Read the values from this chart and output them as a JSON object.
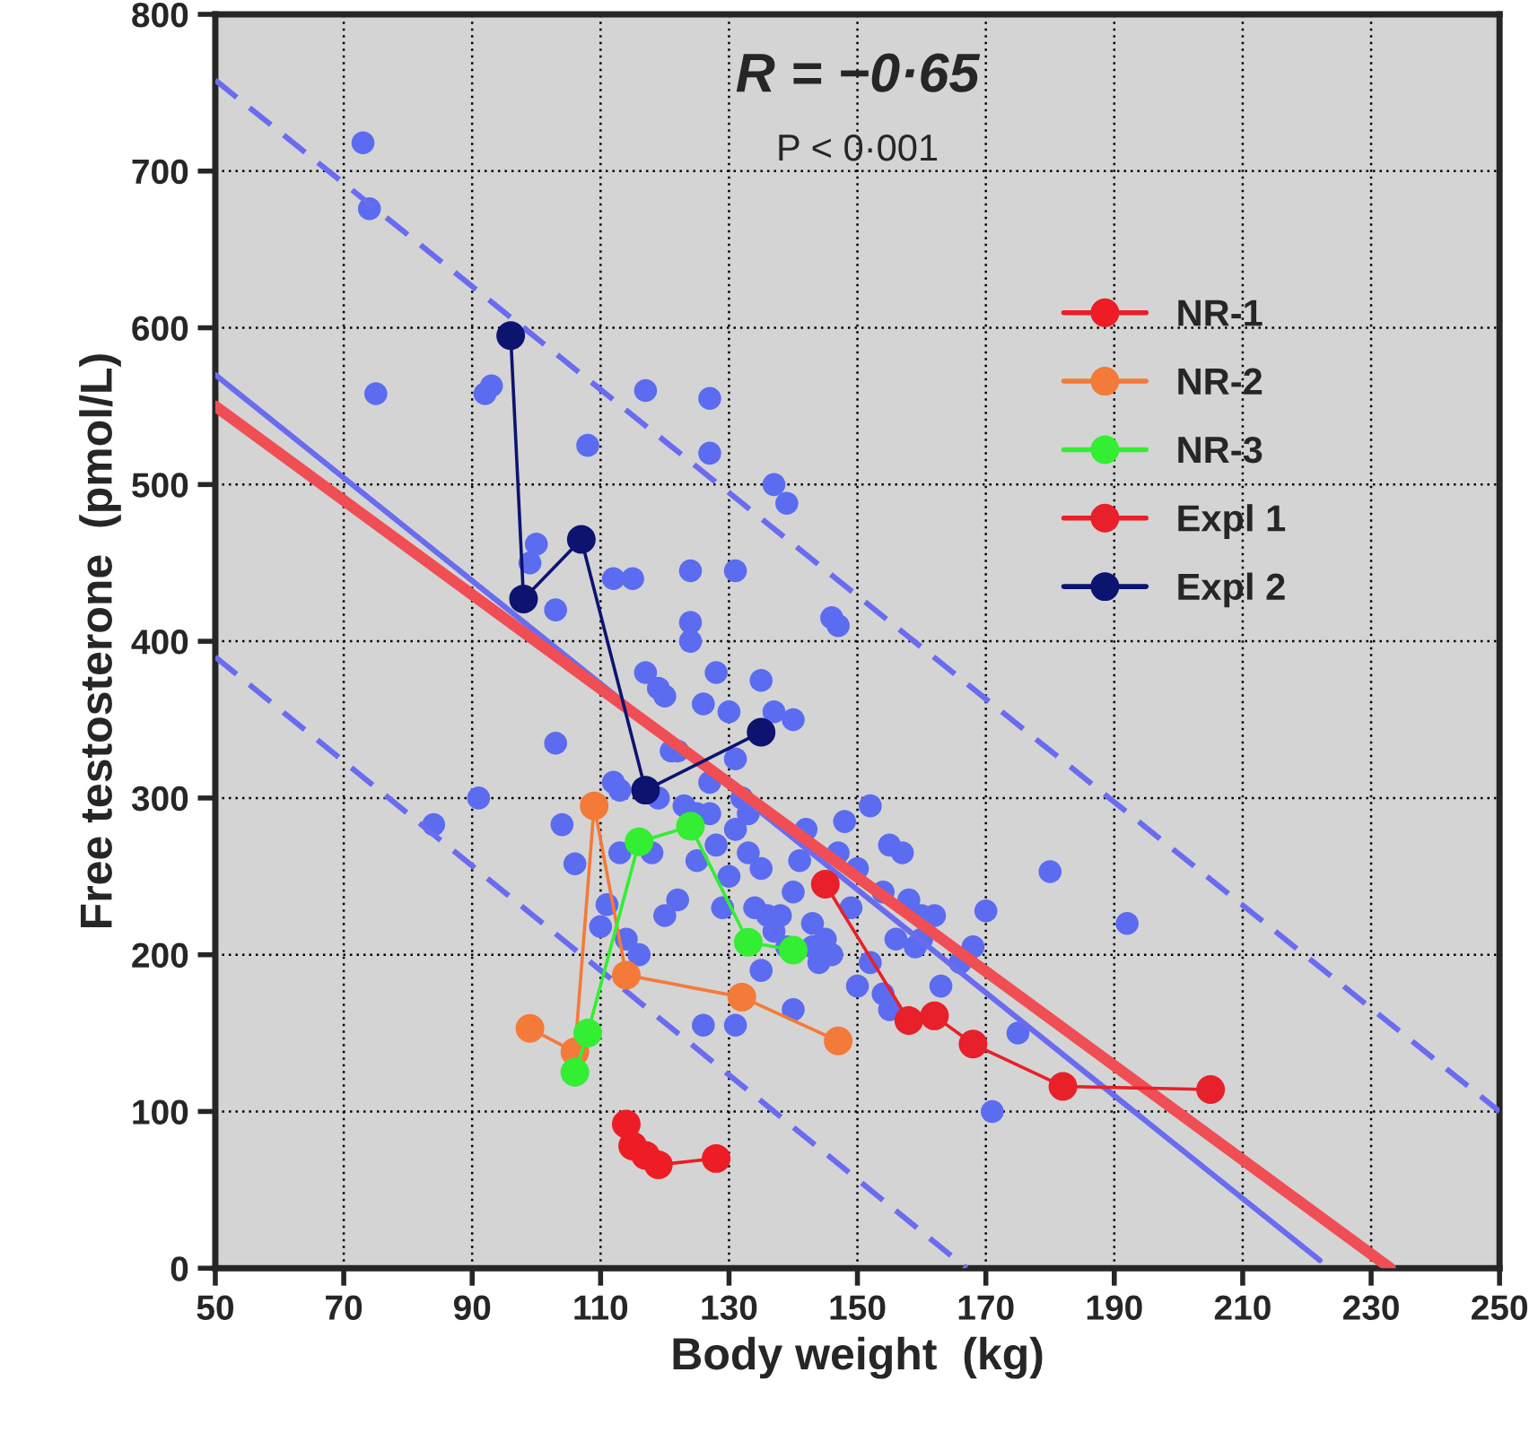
{
  "chart_data": {
    "type": "scatter",
    "xlabel": "Body weight  (kg)",
    "ylabel": "Free testosterone  (pmol/L)",
    "annotations": [
      "R = −0·65",
      "P < 0·001"
    ],
    "xlim": [
      50,
      250
    ],
    "xticks": [
      50,
      70,
      90,
      110,
      130,
      150,
      170,
      190,
      210,
      230,
      250
    ],
    "ylim": [
      0,
      800
    ],
    "yticks": [
      0,
      100,
      200,
      300,
      400,
      500,
      600,
      700,
      800
    ],
    "grid": true,
    "legend": "top right",
    "series": [
      {
        "color": "#5b6cf0",
        "marker": "circle",
        "x": [
          73,
          74,
          75,
          92,
          93,
          99,
          100,
          103,
          108,
          112,
          115,
          117,
          127,
          127,
          131,
          137,
          139,
          84,
          91,
          103,
          104,
          106,
          110,
          111,
          112,
          113,
          117,
          119,
          120,
          121,
          122,
          124,
          124,
          124,
          126,
          127,
          128,
          130,
          131,
          132,
          135,
          137,
          140,
          146,
          147,
          118,
          119,
          123,
          125,
          127,
          128,
          129,
          130,
          131,
          133,
          133,
          134,
          135,
          136,
          137,
          138,
          139,
          140,
          141,
          142,
          143,
          144,
          145,
          148,
          147,
          150,
          152,
          154,
          155,
          157,
          158,
          159,
          160,
          163,
          168,
          170,
          171,
          162,
          150,
          154,
          155,
          152,
          156,
          180,
          192,
          114,
          116,
          120,
          122,
          125,
          113,
          126,
          131,
          140,
          135,
          143,
          146,
          160,
          149,
          175,
          166
        ],
        "values": [
          718,
          676,
          558,
          558,
          563,
          450,
          462,
          420,
          525,
          440,
          440,
          560,
          555,
          520,
          445,
          500,
          488,
          283,
          300,
          335,
          283,
          258,
          218,
          232,
          310,
          305,
          380,
          370,
          365,
          330,
          330,
          445,
          412,
          400,
          360,
          290,
          380,
          355,
          325,
          300,
          375,
          355,
          350,
          415,
          410,
          265,
          300,
          295,
          260,
          310,
          270,
          230,
          250,
          280,
          290,
          265,
          230,
          255,
          225,
          215,
          225,
          205,
          240,
          260,
          280,
          220,
          195,
          210,
          285,
          265,
          255,
          295,
          240,
          270,
          265,
          235,
          205,
          225,
          180,
          205,
          228,
          100,
          225,
          180,
          175,
          165,
          195,
          210,
          253,
          220,
          210,
          200,
          225,
          235,
          290,
          265,
          155,
          155,
          165,
          190,
          205,
          200,
          210,
          230,
          150,
          195
        ]
      },
      {
        "type": "line",
        "color": "#6a6cf0",
        "line_style": "solid",
        "x": [
          50,
          222
        ],
        "values": [
          570,
          5
        ]
      },
      {
        "type": "line",
        "color": "#f04e55",
        "line_style": "solid",
        "x": [
          50,
          233
        ],
        "values": [
          550,
          0
        ]
      },
      {
        "type": "line",
        "color": "#6a6cf0",
        "line_style": "dashed",
        "x": [
          50,
          250
        ],
        "values": [
          758,
          100
        ]
      },
      {
        "type": "line",
        "color": "#6a6cf0",
        "line_style": "dashed",
        "x": [
          50,
          167
        ],
        "values": [
          390,
          0
        ]
      },
      {
        "type": "line",
        "name": "NR-1",
        "color": "#ee1c25",
        "marker": "circle",
        "x": [
          114,
          115,
          117,
          119,
          128
        ],
        "values": [
          92,
          78,
          72,
          66,
          70
        ]
      },
      {
        "type": "line",
        "name": "NR-2",
        "color": "#f47a3a",
        "marker": "circle",
        "x": [
          99,
          106,
          109,
          114,
          132,
          147
        ],
        "values": [
          153,
          138,
          295,
          187,
          173,
          145
        ]
      },
      {
        "type": "line",
        "name": "NR-3",
        "color": "#33ee33",
        "marker": "circle",
        "x": [
          106,
          108,
          116,
          124,
          133,
          140
        ],
        "values": [
          125,
          150,
          272,
          282,
          208,
          203
        ]
      },
      {
        "type": "line",
        "name": "Expl 1",
        "color": "#e8202a",
        "marker": "circle",
        "x": [
          145,
          158,
          162,
          168,
          182,
          205
        ],
        "values": [
          245,
          158,
          161,
          143,
          116,
          114
        ]
      },
      {
        "type": "line",
        "name": "Expl 2",
        "color": "#0d1470",
        "marker": "circle",
        "x": [
          96,
          98,
          107,
          117,
          135
        ],
        "values": [
          595,
          427,
          465,
          305,
          342
        ]
      }
    ]
  }
}
